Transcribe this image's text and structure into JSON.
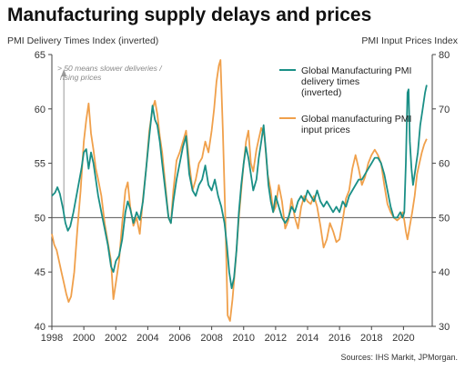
{
  "chart_data": {
    "type": "line",
    "title": "Manufacturing supply delays and prices",
    "ylabel_left": "PMI Delivery Times Index (inverted)",
    "ylabel_right": "PMI Input Prices Index",
    "ylim_left": [
      40,
      65
    ],
    "ylim_right": [
      30,
      80
    ],
    "yticks_left": [
      40,
      45,
      50,
      55,
      60,
      65
    ],
    "yticks_right": [
      30,
      40,
      50,
      60,
      70,
      80
    ],
    "xlim": [
      1998,
      2021.8
    ],
    "xticks": [
      1998,
      2000,
      2002,
      2004,
      2006,
      2008,
      2010,
      2012,
      2014,
      2016,
      2018,
      2020
    ],
    "reference_line": 50,
    "annotation": "> 50 means slower deliveries / rising prices",
    "source": "Sources: IHS Markit, JPMorgan.",
    "grid": false,
    "legend_position": "top-right",
    "series": [
      {
        "name": "Global Manufacturing PMI delivery times (inverted)",
        "axis": "left",
        "color": "#1a8f86",
        "points": [
          [
            1998.0,
            52.0
          ],
          [
            1998.2,
            52.3
          ],
          [
            1998.35,
            52.8
          ],
          [
            1998.5,
            52.2
          ],
          [
            1998.7,
            50.8
          ],
          [
            1998.85,
            49.5
          ],
          [
            1999.0,
            48.8
          ],
          [
            1999.15,
            49.2
          ],
          [
            1999.35,
            50.5
          ],
          [
            1999.6,
            52.5
          ],
          [
            1999.85,
            54.5
          ],
          [
            2000.0,
            56.0
          ],
          [
            2000.15,
            56.3
          ],
          [
            2000.3,
            54.5
          ],
          [
            2000.45,
            56.0
          ],
          [
            2000.6,
            55.0
          ],
          [
            2000.75,
            53.5
          ],
          [
            2000.9,
            52.0
          ],
          [
            2001.1,
            50.5
          ],
          [
            2001.3,
            49.0
          ],
          [
            2001.5,
            47.5
          ],
          [
            2001.7,
            45.5
          ],
          [
            2001.85,
            45.0
          ],
          [
            2002.0,
            46.0
          ],
          [
            2002.2,
            46.5
          ],
          [
            2002.4,
            48.0
          ],
          [
            2002.6,
            50.5
          ],
          [
            2002.75,
            51.5
          ],
          [
            2002.9,
            50.8
          ],
          [
            2003.1,
            49.5
          ],
          [
            2003.3,
            50.5
          ],
          [
            2003.5,
            49.8
          ],
          [
            2003.7,
            51.5
          ],
          [
            2003.9,
            54.5
          ],
          [
            2004.1,
            57.5
          ],
          [
            2004.3,
            60.3
          ],
          [
            2004.45,
            59.0
          ],
          [
            2004.6,
            58.5
          ],
          [
            2004.75,
            57.0
          ],
          [
            2004.9,
            55.0
          ],
          [
            2005.1,
            52.5
          ],
          [
            2005.3,
            50.0
          ],
          [
            2005.45,
            49.5
          ],
          [
            2005.6,
            51.5
          ],
          [
            2005.8,
            53.5
          ],
          [
            2006.0,
            55.0
          ],
          [
            2006.2,
            56.5
          ],
          [
            2006.4,
            57.5
          ],
          [
            2006.6,
            54.0
          ],
          [
            2006.8,
            52.5
          ],
          [
            2007.0,
            52.0
          ],
          [
            2007.2,
            53.0
          ],
          [
            2007.4,
            53.5
          ],
          [
            2007.6,
            54.8
          ],
          [
            2007.8,
            53.0
          ],
          [
            2008.0,
            52.5
          ],
          [
            2008.2,
            53.5
          ],
          [
            2008.4,
            52.0
          ],
          [
            2008.6,
            51.0
          ],
          [
            2008.8,
            49.5
          ],
          [
            2008.95,
            47.5
          ],
          [
            2009.1,
            45.0
          ],
          [
            2009.25,
            43.5
          ],
          [
            2009.4,
            44.5
          ],
          [
            2009.55,
            47.0
          ],
          [
            2009.7,
            50.5
          ],
          [
            2009.85,
            53.0
          ],
          [
            2010.0,
            55.0
          ],
          [
            2010.15,
            56.5
          ],
          [
            2010.3,
            55.5
          ],
          [
            2010.45,
            54.0
          ],
          [
            2010.6,
            52.5
          ],
          [
            2010.8,
            53.5
          ],
          [
            2010.95,
            55.5
          ],
          [
            2011.1,
            57.0
          ],
          [
            2011.25,
            58.5
          ],
          [
            2011.4,
            56.0
          ],
          [
            2011.55,
            53.0
          ],
          [
            2011.7,
            51.5
          ],
          [
            2011.85,
            50.5
          ],
          [
            2012.0,
            52.0
          ],
          [
            2012.2,
            51.0
          ],
          [
            2012.4,
            50.0
          ],
          [
            2012.6,
            49.5
          ],
          [
            2012.8,
            50.0
          ],
          [
            2013.0,
            51.0
          ],
          [
            2013.2,
            50.5
          ],
          [
            2013.4,
            51.5
          ],
          [
            2013.6,
            52.0
          ],
          [
            2013.8,
            51.5
          ],
          [
            2014.0,
            52.5
          ],
          [
            2014.2,
            52.0
          ],
          [
            2014.4,
            51.5
          ],
          [
            2014.6,
            52.5
          ],
          [
            2014.8,
            51.5
          ],
          [
            2015.0,
            51.0
          ],
          [
            2015.2,
            51.5
          ],
          [
            2015.4,
            51.0
          ],
          [
            2015.6,
            50.5
          ],
          [
            2015.8,
            51.0
          ],
          [
            2016.0,
            50.5
          ],
          [
            2016.2,
            51.5
          ],
          [
            2016.4,
            51.0
          ],
          [
            2016.6,
            52.0
          ],
          [
            2016.8,
            52.5
          ],
          [
            2017.0,
            53.0
          ],
          [
            2017.2,
            53.5
          ],
          [
            2017.4,
            53.5
          ],
          [
            2017.6,
            54.0
          ],
          [
            2017.8,
            54.5
          ],
          [
            2018.0,
            55.0
          ],
          [
            2018.2,
            55.5
          ],
          [
            2018.4,
            55.5
          ],
          [
            2018.6,
            55.0
          ],
          [
            2018.8,
            54.0
          ],
          [
            2019.0,
            52.5
          ],
          [
            2019.2,
            51.0
          ],
          [
            2019.4,
            50.0
          ],
          [
            2019.6,
            50.0
          ],
          [
            2019.8,
            50.5
          ],
          [
            2019.95,
            50.0
          ],
          [
            2020.05,
            50.5
          ],
          [
            2020.15,
            55.0
          ],
          [
            2020.25,
            61.5
          ],
          [
            2020.32,
            61.8
          ],
          [
            2020.4,
            57.0
          ],
          [
            2020.5,
            54.5
          ],
          [
            2020.6,
            53.0
          ],
          [
            2020.75,
            54.5
          ],
          [
            2020.9,
            56.0
          ],
          [
            2021.05,
            58.5
          ],
          [
            2021.2,
            60.0
          ],
          [
            2021.35,
            61.5
          ],
          [
            2021.45,
            62.2
          ]
        ]
      },
      {
        "name": "Global manufacturing PMI input prices",
        "axis": "right",
        "color": "#f0a04b",
        "points": [
          [
            1998.0,
            47.0
          ],
          [
            1998.15,
            45.0
          ],
          [
            1998.3,
            44.0
          ],
          [
            1998.45,
            42.0
          ],
          [
            1998.6,
            40.0
          ],
          [
            1998.75,
            38.0
          ],
          [
            1998.9,
            36.0
          ],
          [
            1999.05,
            34.5
          ],
          [
            1999.2,
            35.5
          ],
          [
            1999.4,
            40.0
          ],
          [
            1999.6,
            48.0
          ],
          [
            1999.8,
            55.0
          ],
          [
            2000.0,
            64.0
          ],
          [
            2000.15,
            68.0
          ],
          [
            2000.3,
            71.0
          ],
          [
            2000.45,
            65.5
          ],
          [
            2000.6,
            62.5
          ],
          [
            2000.75,
            59.0
          ],
          [
            2000.9,
            57.0
          ],
          [
            2001.1,
            54.0
          ],
          [
            2001.3,
            49.0
          ],
          [
            2001.5,
            45.5
          ],
          [
            2001.7,
            42.0
          ],
          [
            2001.85,
            35.0
          ],
          [
            2002.0,
            38.0
          ],
          [
            2002.2,
            42.0
          ],
          [
            2002.4,
            49.0
          ],
          [
            2002.6,
            55.0
          ],
          [
            2002.75,
            56.5
          ],
          [
            2002.9,
            52.0
          ],
          [
            2003.1,
            48.5
          ],
          [
            2003.3,
            50.0
          ],
          [
            2003.5,
            47.0
          ],
          [
            2003.7,
            53.5
          ],
          [
            2003.9,
            59.0
          ],
          [
            2004.1,
            66.0
          ],
          [
            2004.3,
            70.0
          ],
          [
            2004.45,
            71.5
          ],
          [
            2004.6,
            69.0
          ],
          [
            2004.75,
            65.0
          ],
          [
            2004.9,
            62.0
          ],
          [
            2005.1,
            56.0
          ],
          [
            2005.3,
            50.0
          ],
          [
            2005.45,
            49.0
          ],
          [
            2005.6,
            55.0
          ],
          [
            2005.8,
            60.5
          ],
          [
            2006.0,
            62.0
          ],
          [
            2006.2,
            64.0
          ],
          [
            2006.4,
            66.0
          ],
          [
            2006.6,
            60.0
          ],
          [
            2006.8,
            55.0
          ],
          [
            2007.0,
            57.0
          ],
          [
            2007.2,
            60.0
          ],
          [
            2007.4,
            61.0
          ],
          [
            2007.6,
            64.0
          ],
          [
            2007.8,
            62.0
          ],
          [
            2008.0,
            66.0
          ],
          [
            2008.15,
            70.0
          ],
          [
            2008.3,
            75.0
          ],
          [
            2008.45,
            78.0
          ],
          [
            2008.55,
            79.0
          ],
          [
            2008.7,
            66.0
          ],
          [
            2008.85,
            50.0
          ],
          [
            2009.0,
            32.0
          ],
          [
            2009.15,
            31.0
          ],
          [
            2009.3,
            35.0
          ],
          [
            2009.5,
            42.0
          ],
          [
            2009.7,
            50.0
          ],
          [
            2009.85,
            55.0
          ],
          [
            2010.0,
            60.0
          ],
          [
            2010.15,
            64.0
          ],
          [
            2010.3,
            66.0
          ],
          [
            2010.45,
            60.0
          ],
          [
            2010.6,
            58.5
          ],
          [
            2010.8,
            62.5
          ],
          [
            2010.95,
            64.5
          ],
          [
            2011.1,
            66.5
          ],
          [
            2011.3,
            65.0
          ],
          [
            2011.5,
            58.0
          ],
          [
            2011.7,
            55.0
          ],
          [
            2011.85,
            51.0
          ],
          [
            2012.0,
            52.0
          ],
          [
            2012.2,
            56.0
          ],
          [
            2012.4,
            53.0
          ],
          [
            2012.6,
            48.0
          ],
          [
            2012.8,
            49.5
          ],
          [
            2013.0,
            53.5
          ],
          [
            2013.2,
            50.0
          ],
          [
            2013.4,
            48.0
          ],
          [
            2013.6,
            52.0
          ],
          [
            2013.8,
            54.0
          ],
          [
            2014.0,
            53.0
          ],
          [
            2014.2,
            52.5
          ],
          [
            2014.4,
            54.0
          ],
          [
            2014.6,
            52.0
          ],
          [
            2014.8,
            48.5
          ],
          [
            2015.0,
            44.5
          ],
          [
            2015.2,
            46.0
          ],
          [
            2015.4,
            49.0
          ],
          [
            2015.6,
            47.5
          ],
          [
            2015.8,
            45.5
          ],
          [
            2016.0,
            46.0
          ],
          [
            2016.2,
            49.5
          ],
          [
            2016.4,
            53.5
          ],
          [
            2016.6,
            55.0
          ],
          [
            2016.8,
            59.0
          ],
          [
            2017.0,
            61.5
          ],
          [
            2017.2,
            59.0
          ],
          [
            2017.4,
            56.0
          ],
          [
            2017.6,
            57.5
          ],
          [
            2017.8,
            60.0
          ],
          [
            2018.0,
            61.5
          ],
          [
            2018.2,
            62.5
          ],
          [
            2018.4,
            61.5
          ],
          [
            2018.6,
            60.0
          ],
          [
            2018.8,
            56.0
          ],
          [
            2019.0,
            52.5
          ],
          [
            2019.2,
            51.0
          ],
          [
            2019.4,
            50.0
          ],
          [
            2019.6,
            49.5
          ],
          [
            2019.8,
            50.0
          ],
          [
            2019.95,
            51.0
          ],
          [
            2020.05,
            49.5
          ],
          [
            2020.15,
            47.5
          ],
          [
            2020.25,
            46.0
          ],
          [
            2020.4,
            48.5
          ],
          [
            2020.55,
            51.0
          ],
          [
            2020.7,
            54.0
          ],
          [
            2020.85,
            58.0
          ],
          [
            2021.0,
            60.0
          ],
          [
            2021.15,
            62.0
          ],
          [
            2021.3,
            63.5
          ],
          [
            2021.45,
            64.5
          ]
        ]
      }
    ]
  }
}
